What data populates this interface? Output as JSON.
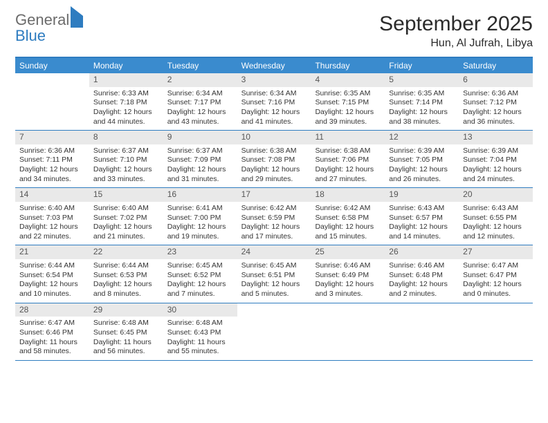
{
  "logo": {
    "general": "General",
    "blue": "Blue"
  },
  "title": "September 2025",
  "location": "Hun, Al Jufrah, Libya",
  "colors": {
    "header_bg": "#3a8bce",
    "border": "#2e7cc0",
    "daynum_bg": "#e9e9e9",
    "text": "#333333",
    "logo_gray": "#6b6b6b",
    "logo_blue": "#2e7cc0"
  },
  "dow": [
    "Sunday",
    "Monday",
    "Tuesday",
    "Wednesday",
    "Thursday",
    "Friday",
    "Saturday"
  ],
  "weeks": [
    [
      {
        "n": "",
        "sr": "",
        "ss": "",
        "dl": ""
      },
      {
        "n": "1",
        "sr": "Sunrise: 6:33 AM",
        "ss": "Sunset: 7:18 PM",
        "dl": "Daylight: 12 hours and 44 minutes."
      },
      {
        "n": "2",
        "sr": "Sunrise: 6:34 AM",
        "ss": "Sunset: 7:17 PM",
        "dl": "Daylight: 12 hours and 43 minutes."
      },
      {
        "n": "3",
        "sr": "Sunrise: 6:34 AM",
        "ss": "Sunset: 7:16 PM",
        "dl": "Daylight: 12 hours and 41 minutes."
      },
      {
        "n": "4",
        "sr": "Sunrise: 6:35 AM",
        "ss": "Sunset: 7:15 PM",
        "dl": "Daylight: 12 hours and 39 minutes."
      },
      {
        "n": "5",
        "sr": "Sunrise: 6:35 AM",
        "ss": "Sunset: 7:14 PM",
        "dl": "Daylight: 12 hours and 38 minutes."
      },
      {
        "n": "6",
        "sr": "Sunrise: 6:36 AM",
        "ss": "Sunset: 7:12 PM",
        "dl": "Daylight: 12 hours and 36 minutes."
      }
    ],
    [
      {
        "n": "7",
        "sr": "Sunrise: 6:36 AM",
        "ss": "Sunset: 7:11 PM",
        "dl": "Daylight: 12 hours and 34 minutes."
      },
      {
        "n": "8",
        "sr": "Sunrise: 6:37 AM",
        "ss": "Sunset: 7:10 PM",
        "dl": "Daylight: 12 hours and 33 minutes."
      },
      {
        "n": "9",
        "sr": "Sunrise: 6:37 AM",
        "ss": "Sunset: 7:09 PM",
        "dl": "Daylight: 12 hours and 31 minutes."
      },
      {
        "n": "10",
        "sr": "Sunrise: 6:38 AM",
        "ss": "Sunset: 7:08 PM",
        "dl": "Daylight: 12 hours and 29 minutes."
      },
      {
        "n": "11",
        "sr": "Sunrise: 6:38 AM",
        "ss": "Sunset: 7:06 PM",
        "dl": "Daylight: 12 hours and 27 minutes."
      },
      {
        "n": "12",
        "sr": "Sunrise: 6:39 AM",
        "ss": "Sunset: 7:05 PM",
        "dl": "Daylight: 12 hours and 26 minutes."
      },
      {
        "n": "13",
        "sr": "Sunrise: 6:39 AM",
        "ss": "Sunset: 7:04 PM",
        "dl": "Daylight: 12 hours and 24 minutes."
      }
    ],
    [
      {
        "n": "14",
        "sr": "Sunrise: 6:40 AM",
        "ss": "Sunset: 7:03 PM",
        "dl": "Daylight: 12 hours and 22 minutes."
      },
      {
        "n": "15",
        "sr": "Sunrise: 6:40 AM",
        "ss": "Sunset: 7:02 PM",
        "dl": "Daylight: 12 hours and 21 minutes."
      },
      {
        "n": "16",
        "sr": "Sunrise: 6:41 AM",
        "ss": "Sunset: 7:00 PM",
        "dl": "Daylight: 12 hours and 19 minutes."
      },
      {
        "n": "17",
        "sr": "Sunrise: 6:42 AM",
        "ss": "Sunset: 6:59 PM",
        "dl": "Daylight: 12 hours and 17 minutes."
      },
      {
        "n": "18",
        "sr": "Sunrise: 6:42 AM",
        "ss": "Sunset: 6:58 PM",
        "dl": "Daylight: 12 hours and 15 minutes."
      },
      {
        "n": "19",
        "sr": "Sunrise: 6:43 AM",
        "ss": "Sunset: 6:57 PM",
        "dl": "Daylight: 12 hours and 14 minutes."
      },
      {
        "n": "20",
        "sr": "Sunrise: 6:43 AM",
        "ss": "Sunset: 6:55 PM",
        "dl": "Daylight: 12 hours and 12 minutes."
      }
    ],
    [
      {
        "n": "21",
        "sr": "Sunrise: 6:44 AM",
        "ss": "Sunset: 6:54 PM",
        "dl": "Daylight: 12 hours and 10 minutes."
      },
      {
        "n": "22",
        "sr": "Sunrise: 6:44 AM",
        "ss": "Sunset: 6:53 PM",
        "dl": "Daylight: 12 hours and 8 minutes."
      },
      {
        "n": "23",
        "sr": "Sunrise: 6:45 AM",
        "ss": "Sunset: 6:52 PM",
        "dl": "Daylight: 12 hours and 7 minutes."
      },
      {
        "n": "24",
        "sr": "Sunrise: 6:45 AM",
        "ss": "Sunset: 6:51 PM",
        "dl": "Daylight: 12 hours and 5 minutes."
      },
      {
        "n": "25",
        "sr": "Sunrise: 6:46 AM",
        "ss": "Sunset: 6:49 PM",
        "dl": "Daylight: 12 hours and 3 minutes."
      },
      {
        "n": "26",
        "sr": "Sunrise: 6:46 AM",
        "ss": "Sunset: 6:48 PM",
        "dl": "Daylight: 12 hours and 2 minutes."
      },
      {
        "n": "27",
        "sr": "Sunrise: 6:47 AM",
        "ss": "Sunset: 6:47 PM",
        "dl": "Daylight: 12 hours and 0 minutes."
      }
    ],
    [
      {
        "n": "28",
        "sr": "Sunrise: 6:47 AM",
        "ss": "Sunset: 6:46 PM",
        "dl": "Daylight: 11 hours and 58 minutes."
      },
      {
        "n": "29",
        "sr": "Sunrise: 6:48 AM",
        "ss": "Sunset: 6:45 PM",
        "dl": "Daylight: 11 hours and 56 minutes."
      },
      {
        "n": "30",
        "sr": "Sunrise: 6:48 AM",
        "ss": "Sunset: 6:43 PM",
        "dl": "Daylight: 11 hours and 55 minutes."
      },
      {
        "n": "",
        "sr": "",
        "ss": "",
        "dl": ""
      },
      {
        "n": "",
        "sr": "",
        "ss": "",
        "dl": ""
      },
      {
        "n": "",
        "sr": "",
        "ss": "",
        "dl": ""
      },
      {
        "n": "",
        "sr": "",
        "ss": "",
        "dl": ""
      }
    ]
  ]
}
